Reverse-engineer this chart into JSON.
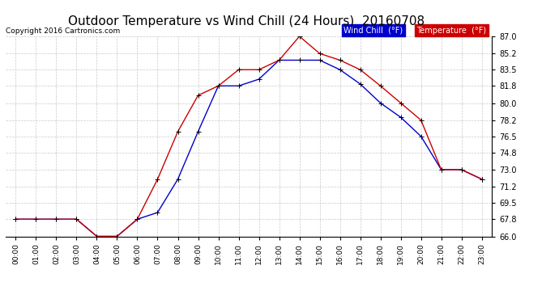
{
  "title": "Outdoor Temperature vs Wind Chill (24 Hours)  20160708",
  "copyright": "Copyright 2016 Cartronics.com",
  "hours": [
    "00:00",
    "01:00",
    "02:00",
    "03:00",
    "04:00",
    "05:00",
    "06:00",
    "07:00",
    "08:00",
    "09:00",
    "10:00",
    "11:00",
    "12:00",
    "13:00",
    "14:00",
    "15:00",
    "16:00",
    "17:00",
    "18:00",
    "19:00",
    "20:00",
    "21:00",
    "22:00",
    "23:00"
  ],
  "temperature": [
    67.8,
    67.8,
    67.8,
    67.8,
    66.0,
    66.0,
    67.8,
    72.0,
    77.0,
    80.8,
    81.8,
    83.5,
    83.5,
    84.5,
    87.0,
    85.2,
    84.5,
    83.5,
    81.8,
    80.0,
    78.2,
    73.0,
    73.0,
    72.0
  ],
  "wind_chill": [
    67.8,
    67.8,
    67.8,
    67.8,
    66.0,
    66.0,
    67.8,
    68.5,
    72.0,
    77.0,
    81.8,
    81.8,
    82.5,
    84.5,
    84.5,
    84.5,
    83.5,
    82.0,
    80.0,
    78.5,
    76.5,
    73.0,
    73.0,
    72.0
  ],
  "temp_color": "#cc0000",
  "windchill_color": "#0000cc",
  "bg_color": "#ffffff",
  "grid_color": "#bbbbbb",
  "ylim": [
    66.0,
    87.0
  ],
  "yticks": [
    66.0,
    67.8,
    69.5,
    71.2,
    73.0,
    74.8,
    76.5,
    78.2,
    80.0,
    81.8,
    83.5,
    85.2,
    87.0
  ],
  "title_fontsize": 11,
  "copyright_fontsize": 6.5,
  "legend_wind_bg": "#0000cc",
  "legend_temp_bg": "#cc0000",
  "legend_fontsize": 7
}
